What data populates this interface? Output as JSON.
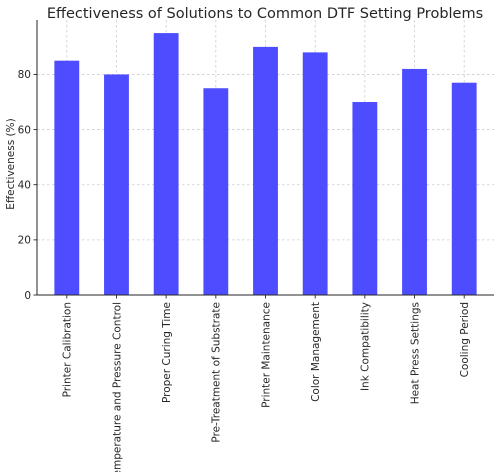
{
  "chart_data": {
    "type": "bar",
    "title": "Effectiveness of Solutions to Common DTF Setting Problems",
    "xlabel": "",
    "ylabel": "Effectiveness (%)",
    "categories": [
      "Printer Calibration",
      "Temperature and Pressure Control",
      "Proper Curing Time",
      "Pre-Treatment of Substrate",
      "Printer Maintenance",
      "Color Management",
      "Ink Compatibility",
      "Heat Press Settings",
      "Cooling Period"
    ],
    "values": [
      85,
      80,
      95,
      75,
      90,
      88,
      70,
      82,
      77
    ],
    "ylim": [
      0,
      99.75
    ],
    "yticks": [
      0,
      20,
      40,
      60,
      80
    ],
    "grid": true,
    "bar_color": "#4d4dff"
  }
}
